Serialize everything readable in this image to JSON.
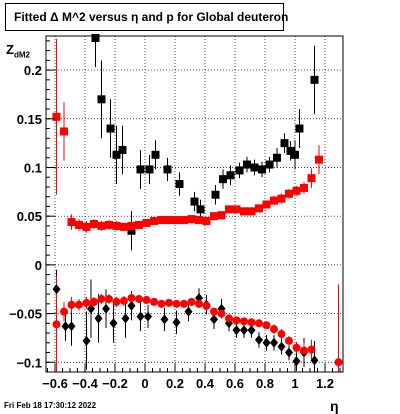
{
  "title": "Fitted Δ M^2 versus η and p for Global deuteron",
  "ylabel_main": "Z",
  "ylabel_sub": "dM2",
  "xlabel": "η",
  "footer": "Fri Feb 18 17:30:12 2022",
  "chart_data": {
    "type": "scatter",
    "title": "Fitted Δ M^2 versus η and p for Global deuteron",
    "xlabel": "η",
    "ylabel": "Z dM2",
    "xlim": [
      -0.66,
      1.32
    ],
    "ylim": [
      -0.11,
      0.235
    ],
    "grid": true,
    "xticks": [
      -0.6,
      -0.4,
      -0.2,
      0,
      0.2,
      0.4,
      0.6,
      0.8,
      1,
      1.2
    ],
    "xtick_labels": [
      "−0.6",
      "−0.4",
      "−0.2",
      "0",
      "0.2",
      "0.4",
      "0.6",
      "0.8",
      "1",
      "1.2"
    ],
    "yticks": [
      -0.1,
      -0.05,
      0,
      0.05,
      0.1,
      0.15,
      0.2
    ],
    "ytick_labels": [
      "−0.1",
      "−0.05",
      "0",
      "0.05",
      "0.1",
      "0.15",
      "0.2"
    ],
    "series": [
      {
        "color": "#000000",
        "marker": "square",
        "points": [
          {
            "x": -0.33,
            "y": 0.233,
            "err": 0.03
          },
          {
            "x": -0.29,
            "y": 0.17,
            "err": 0.04
          },
          {
            "x": -0.23,
            "y": 0.14,
            "err": 0.03
          },
          {
            "x": -0.19,
            "y": 0.113,
            "err": 0.03
          },
          {
            "x": -0.15,
            "y": 0.118,
            "err": 0.025
          },
          {
            "x": -0.09,
            "y": 0.035,
            "err": 0.02
          },
          {
            "x": -0.03,
            "y": 0.098,
            "err": 0.02
          },
          {
            "x": 0.03,
            "y": 0.098,
            "err": 0.015
          },
          {
            "x": 0.07,
            "y": 0.113,
            "err": 0.015
          },
          {
            "x": 0.15,
            "y": 0.098,
            "err": 0.012
          },
          {
            "x": 0.23,
            "y": 0.083,
            "err": 0.012
          },
          {
            "x": 0.33,
            "y": 0.065,
            "err": 0.01
          },
          {
            "x": 0.37,
            "y": 0.057,
            "err": 0.01
          },
          {
            "x": 0.47,
            "y": 0.072,
            "err": 0.01
          },
          {
            "x": 0.52,
            "y": 0.088,
            "err": 0.01
          },
          {
            "x": 0.57,
            "y": 0.092,
            "err": 0.01
          },
          {
            "x": 0.63,
            "y": 0.097,
            "err": 0.008
          },
          {
            "x": 0.68,
            "y": 0.103,
            "err": 0.008
          },
          {
            "x": 0.73,
            "y": 0.1,
            "err": 0.008
          },
          {
            "x": 0.78,
            "y": 0.098,
            "err": 0.008
          },
          {
            "x": 0.83,
            "y": 0.103,
            "err": 0.008
          },
          {
            "x": 0.88,
            "y": 0.11,
            "err": 0.01
          },
          {
            "x": 0.93,
            "y": 0.125,
            "err": 0.01
          },
          {
            "x": 0.97,
            "y": 0.117,
            "err": 0.01
          },
          {
            "x": 1.0,
            "y": 0.113,
            "err": 0.015
          },
          {
            "x": 1.03,
            "y": 0.14,
            "err": 0.02
          },
          {
            "x": 1.13,
            "y": 0.19,
            "err": 0.035
          }
        ]
      },
      {
        "color": "#ff0000",
        "marker": "square",
        "points": [
          {
            "x": -0.59,
            "y": 0.152,
            "err": 0.08
          },
          {
            "x": -0.54,
            "y": 0.137,
            "err": 0.03
          },
          {
            "x": -0.49,
            "y": 0.044,
            "err": 0.008
          },
          {
            "x": -0.44,
            "y": 0.041,
            "err": 0.006
          },
          {
            "x": -0.39,
            "y": 0.039,
            "err": 0.006
          },
          {
            "x": -0.34,
            "y": 0.042,
            "err": 0.005
          },
          {
            "x": -0.29,
            "y": 0.04,
            "err": 0.005
          },
          {
            "x": -0.24,
            "y": 0.041,
            "err": 0.005
          },
          {
            "x": -0.19,
            "y": 0.04,
            "err": 0.005
          },
          {
            "x": -0.14,
            "y": 0.039,
            "err": 0.004
          },
          {
            "x": -0.09,
            "y": 0.04,
            "err": 0.004
          },
          {
            "x": -0.04,
            "y": 0.041,
            "err": 0.004
          },
          {
            "x": 0.01,
            "y": 0.043,
            "err": 0.004
          },
          {
            "x": 0.06,
            "y": 0.045,
            "err": 0.004
          },
          {
            "x": 0.11,
            "y": 0.046,
            "err": 0.004
          },
          {
            "x": 0.16,
            "y": 0.046,
            "err": 0.004
          },
          {
            "x": 0.21,
            "y": 0.046,
            "err": 0.004
          },
          {
            "x": 0.26,
            "y": 0.046,
            "err": 0.004
          },
          {
            "x": 0.31,
            "y": 0.047,
            "err": 0.004
          },
          {
            "x": 0.36,
            "y": 0.046,
            "err": 0.004
          },
          {
            "x": 0.41,
            "y": 0.045,
            "err": 0.004
          },
          {
            "x": 0.46,
            "y": 0.05,
            "err": 0.004
          },
          {
            "x": 0.51,
            "y": 0.051,
            "err": 0.004
          },
          {
            "x": 0.56,
            "y": 0.057,
            "err": 0.004
          },
          {
            "x": 0.61,
            "y": 0.057,
            "err": 0.004
          },
          {
            "x": 0.66,
            "y": 0.055,
            "err": 0.004
          },
          {
            "x": 0.71,
            "y": 0.055,
            "err": 0.004
          },
          {
            "x": 0.76,
            "y": 0.058,
            "err": 0.004
          },
          {
            "x": 0.81,
            "y": 0.062,
            "err": 0.004
          },
          {
            "x": 0.86,
            "y": 0.066,
            "err": 0.005
          },
          {
            "x": 0.91,
            "y": 0.068,
            "err": 0.005
          },
          {
            "x": 0.96,
            "y": 0.073,
            "err": 0.005
          },
          {
            "x": 1.01,
            "y": 0.076,
            "err": 0.005
          },
          {
            "x": 1.06,
            "y": 0.079,
            "err": 0.006
          },
          {
            "x": 1.11,
            "y": 0.089,
            "err": 0.01
          },
          {
            "x": 1.16,
            "y": 0.108,
            "err": 0.015
          }
        ]
      },
      {
        "color": "#000000",
        "marker": "diamond",
        "points": [
          {
            "x": -0.59,
            "y": -0.025,
            "err": 0.02
          },
          {
            "x": -0.53,
            "y": -0.063,
            "err": 0.015
          },
          {
            "x": -0.49,
            "y": -0.063,
            "err": 0.02
          },
          {
            "x": -0.39,
            "y": -0.078,
            "err": 0.03
          },
          {
            "x": -0.36,
            "y": -0.045,
            "err": 0.03
          },
          {
            "x": -0.31,
            "y": -0.055,
            "err": 0.025
          },
          {
            "x": -0.26,
            "y": -0.045,
            "err": 0.02
          },
          {
            "x": -0.21,
            "y": -0.06,
            "err": 0.02
          },
          {
            "x": -0.13,
            "y": -0.055,
            "err": 0.02
          },
          {
            "x": -0.09,
            "y": -0.042,
            "err": 0.015
          },
          {
            "x": -0.03,
            "y": -0.053,
            "err": 0.015
          },
          {
            "x": 0.02,
            "y": -0.053,
            "err": 0.012
          },
          {
            "x": 0.13,
            "y": -0.056,
            "err": 0.012
          },
          {
            "x": 0.21,
            "y": -0.059,
            "err": 0.012
          },
          {
            "x": 0.29,
            "y": -0.048,
            "err": 0.01
          },
          {
            "x": 0.36,
            "y": -0.034,
            "err": 0.01
          },
          {
            "x": 0.41,
            "y": -0.041,
            "err": 0.01
          },
          {
            "x": 0.46,
            "y": -0.056,
            "err": 0.01
          },
          {
            "x": 0.51,
            "y": -0.045,
            "err": 0.01
          },
          {
            "x": 0.56,
            "y": -0.06,
            "err": 0.008
          },
          {
            "x": 0.61,
            "y": -0.067,
            "err": 0.008
          },
          {
            "x": 0.66,
            "y": -0.067,
            "err": 0.008
          },
          {
            "x": 0.71,
            "y": -0.067,
            "err": 0.008
          },
          {
            "x": 0.76,
            "y": -0.077,
            "err": 0.008
          },
          {
            "x": 0.81,
            "y": -0.08,
            "err": 0.008
          },
          {
            "x": 0.86,
            "y": -0.08,
            "err": 0.008
          },
          {
            "x": 0.91,
            "y": -0.084,
            "err": 0.008
          },
          {
            "x": 0.96,
            "y": -0.09,
            "err": 0.008
          },
          {
            "x": 1.01,
            "y": -0.099,
            "err": 0.01
          },
          {
            "x": 1.06,
            "y": -0.09,
            "err": 0.015
          },
          {
            "x": 1.13,
            "y": -0.098,
            "err": 0.02
          }
        ]
      },
      {
        "color": "#ff0000",
        "marker": "circle",
        "points": [
          {
            "x": -0.59,
            "y": -0.061,
            "err": 0.05
          },
          {
            "x": -0.54,
            "y": -0.048,
            "err": 0.01
          },
          {
            "x": -0.49,
            "y": -0.041,
            "err": 0.008
          },
          {
            "x": -0.44,
            "y": -0.041,
            "err": 0.006
          },
          {
            "x": -0.39,
            "y": -0.039,
            "err": 0.006
          },
          {
            "x": -0.34,
            "y": -0.038,
            "err": 0.005
          },
          {
            "x": -0.29,
            "y": -0.035,
            "err": 0.005
          },
          {
            "x": -0.24,
            "y": -0.035,
            "err": 0.005
          },
          {
            "x": -0.19,
            "y": -0.038,
            "err": 0.005
          },
          {
            "x": -0.14,
            "y": -0.037,
            "err": 0.005
          },
          {
            "x": -0.09,
            "y": -0.034,
            "err": 0.005
          },
          {
            "x": -0.04,
            "y": -0.035,
            "err": 0.004
          },
          {
            "x": 0.01,
            "y": -0.036,
            "err": 0.004
          },
          {
            "x": 0.06,
            "y": -0.038,
            "err": 0.004
          },
          {
            "x": 0.11,
            "y": -0.04,
            "err": 0.004
          },
          {
            "x": 0.16,
            "y": -0.039,
            "err": 0.004
          },
          {
            "x": 0.21,
            "y": -0.04,
            "err": 0.004
          },
          {
            "x": 0.26,
            "y": -0.04,
            "err": 0.004
          },
          {
            "x": 0.31,
            "y": -0.038,
            "err": 0.004
          },
          {
            "x": 0.36,
            "y": -0.04,
            "err": 0.004
          },
          {
            "x": 0.41,
            "y": -0.042,
            "err": 0.004
          },
          {
            "x": 0.46,
            "y": -0.048,
            "err": 0.004
          },
          {
            "x": 0.51,
            "y": -0.05,
            "err": 0.004
          },
          {
            "x": 0.56,
            "y": -0.055,
            "err": 0.004
          },
          {
            "x": 0.61,
            "y": -0.057,
            "err": 0.004
          },
          {
            "x": 0.66,
            "y": -0.058,
            "err": 0.004
          },
          {
            "x": 0.71,
            "y": -0.059,
            "err": 0.004
          },
          {
            "x": 0.76,
            "y": -0.06,
            "err": 0.004
          },
          {
            "x": 0.81,
            "y": -0.062,
            "err": 0.004
          },
          {
            "x": 0.86,
            "y": -0.066,
            "err": 0.005
          },
          {
            "x": 0.91,
            "y": -0.071,
            "err": 0.005
          },
          {
            "x": 0.96,
            "y": -0.078,
            "err": 0.005
          },
          {
            "x": 1.01,
            "y": -0.085,
            "err": 0.006
          },
          {
            "x": 1.06,
            "y": -0.088,
            "err": 0.008
          },
          {
            "x": 1.11,
            "y": -0.087,
            "err": 0.01
          },
          {
            "x": 1.29,
            "y": -0.1,
            "err": 0.08
          }
        ]
      }
    ]
  }
}
